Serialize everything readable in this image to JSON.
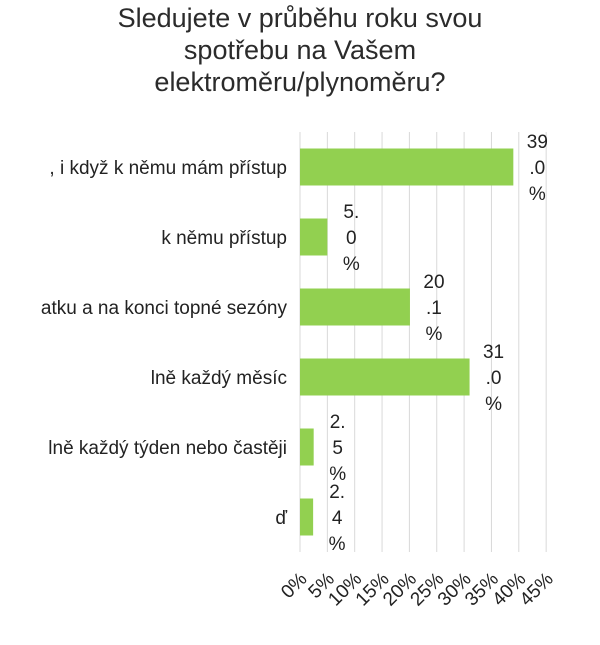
{
  "chart_data": {
    "type": "bar",
    "orientation": "horizontal",
    "title": "Sledujete v průběhu roku svou\nspotřebu na Vašem\nelektroměru/plynoměru?",
    "categories": [
      ", i když k němu mám přístup",
      "k němu přístup",
      "atku a na konci topné sezóny",
      "lně každý měsíc",
      "lně každý týden nebo častěji",
      "ď"
    ],
    "values": [
      39.0,
      5.0,
      20.1,
      31.0,
      2.5,
      2.4
    ],
    "value_labels": [
      [
        "39",
        ".0",
        "%"
      ],
      [
        "5.",
        "0",
        "%"
      ],
      [
        "20",
        ".1",
        "%"
      ],
      [
        "31",
        ".0",
        "%"
      ],
      [
        "2.",
        "5",
        "%"
      ],
      [
        "2.",
        "4",
        "%"
      ]
    ],
    "xlim": [
      0,
      45
    ],
    "x_ticks": [
      "0%",
      "5%",
      "10%",
      "15%",
      "20%",
      "25%",
      "30%",
      "35%",
      "40%",
      "45%"
    ],
    "grid": true,
    "legend": "none",
    "bar_color": "#92d050",
    "grid_color": "#d9d9d9"
  }
}
